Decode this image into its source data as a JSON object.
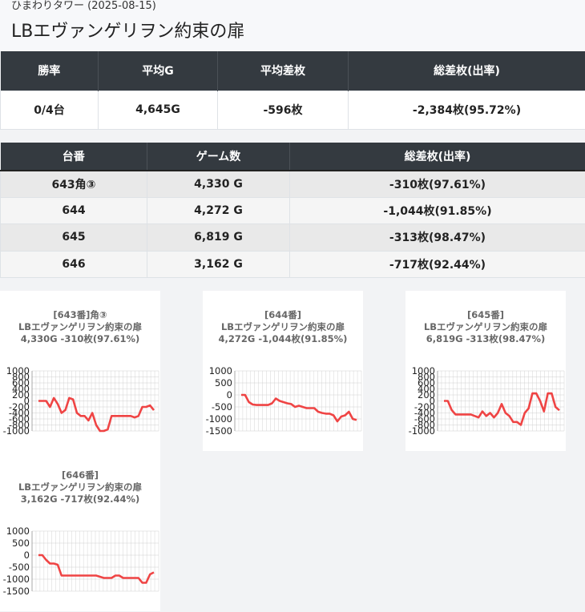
{
  "header": {
    "subtitle": "ひまわりタワー (2025-08-15)",
    "title": "LBエヴァンゲリヲン約束の扉"
  },
  "summary": {
    "columns": [
      "勝率",
      "平均G",
      "平均差枚",
      "総差枚(出率)"
    ],
    "values": [
      "0/4台",
      "4,645G",
      "-596枚",
      "-2,384枚(95.72%)"
    ]
  },
  "machines": {
    "columns": [
      "台番",
      "ゲーム数",
      "総差枚(出率)"
    ],
    "rows": [
      [
        "643角③",
        "4,330 G",
        "-310枚(97.61%)"
      ],
      [
        "644",
        "4,272 G",
        "-1,044枚(91.85%)"
      ],
      [
        "645",
        "6,819 G",
        "-313枚(98.47%)"
      ],
      [
        "646",
        "3,162 G",
        "-717枚(92.44%)"
      ]
    ]
  },
  "chart_data": [
    {
      "type": "line",
      "title_lines": [
        "[643番]角③",
        "LBエヴァンゲリヲン約束の扉",
        "4,330G -310枚(97.61%)"
      ],
      "yticks": [
        "1000",
        "800",
        "600",
        "400",
        "200",
        "0",
        "-200",
        "-400",
        "-600",
        "-800",
        "-1000"
      ],
      "ylim": [
        -1000,
        1000
      ],
      "color": "#ef4444",
      "values": [
        0,
        0,
        0,
        -200,
        100,
        -100,
        -400,
        -300,
        100,
        50,
        -400,
        -500,
        -500,
        -650,
        -400,
        -800,
        -1000,
        -1000,
        -950,
        -500,
        -500,
        -500,
        -500,
        -500,
        -500,
        -550,
        -500,
        -200,
        -200,
        -150,
        -310
      ]
    },
    {
      "type": "line",
      "title_lines": [
        "[644番]",
        "LBエヴァンゲリヲン約束の扉",
        "4,272G -1,044枚(91.85%)"
      ],
      "yticks": [
        "1000",
        "500",
        "0",
        "-500",
        "-1000",
        "-1500"
      ],
      "ylim": [
        -1500,
        1000
      ],
      "color": "#ef4444",
      "values": [
        0,
        0,
        -300,
        -400,
        -420,
        -420,
        -420,
        -420,
        -350,
        -150,
        -250,
        -300,
        -350,
        -380,
        -500,
        -450,
        -500,
        -550,
        -550,
        -550,
        -700,
        -750,
        -780,
        -780,
        -850,
        -1100,
        -900,
        -850,
        -700,
        -1000,
        -1044
      ]
    },
    {
      "type": "line",
      "title_lines": [
        "[645番]",
        "LBエヴァンゲリヲン約束の扉",
        "6,819G -313枚(98.47%)"
      ],
      "yticks": [
        "1000",
        "800",
        "600",
        "400",
        "200",
        "0",
        "-200",
        "-400",
        "-600",
        "-800",
        "-1000"
      ],
      "ylim": [
        -1000,
        1000
      ],
      "color": "#ef4444",
      "values": [
        0,
        0,
        -300,
        -450,
        -450,
        -450,
        -450,
        -450,
        -500,
        -550,
        -350,
        -500,
        -400,
        -550,
        -400,
        -100,
        -400,
        -500,
        -700,
        -700,
        -800,
        -400,
        -250,
        250,
        250,
        0,
        -350,
        250,
        250,
        -200,
        -313
      ]
    },
    {
      "type": "line",
      "title_lines": [
        "[646番]",
        "LBエヴァンゲリヲン約束の扉",
        "3,162G -717枚(92.44%)"
      ],
      "yticks": [
        "1000",
        "500",
        "0",
        "-500",
        "-1000",
        "-1500"
      ],
      "ylim": [
        -1500,
        1000
      ],
      "color": "#ef4444",
      "values": [
        0,
        0,
        -200,
        -350,
        -350,
        -400,
        -850,
        -850,
        -850,
        -850,
        -850,
        -850,
        -850,
        -850,
        -850,
        -850,
        -900,
        -950,
        -950,
        -950,
        -850,
        -850,
        -950,
        -950,
        -950,
        -950,
        -950,
        -1150,
        -1150,
        -800,
        -717
      ]
    }
  ]
}
